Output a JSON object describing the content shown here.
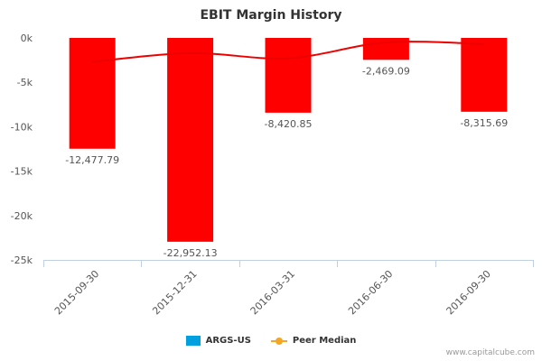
{
  "chart_data": {
    "type": "bar",
    "title": "EBIT Margin History",
    "categories": [
      "2015-09-30",
      "2015-12-31",
      "2016-03-31",
      "2016-06-30",
      "2016-09-30"
    ],
    "series": [
      {
        "name": "ARGS-US",
        "type": "bar",
        "values": [
          -12477.79,
          -22952.13,
          -8420.85,
          -2469.09,
          -8315.69
        ],
        "labels": [
          "-12,477.79",
          "-22,952.13",
          "-8,420.85",
          "-2,469.09",
          "-8,315.69"
        ]
      },
      {
        "name": "Peer Median",
        "type": "line",
        "values": [
          -2700,
          -1700,
          -2300,
          -500,
          -700
        ]
      }
    ],
    "ylim": [
      -25000,
      0
    ],
    "yticks": [
      0,
      -5000,
      -10000,
      -15000,
      -20000,
      -25000
    ],
    "ytick_labels": [
      "0k",
      "-5k",
      "-10k",
      "-15k",
      "-20k",
      "-25k"
    ],
    "xlabel": "",
    "ylabel": "",
    "legend": "bottom-center"
  },
  "colors": {
    "bar": "#ff0000",
    "peer_line": "#ee0000",
    "legend_bar": "#00a0e0",
    "legend_line": "#f5a623"
  },
  "legend": {
    "bar_label": "ARGS-US",
    "line_label": "Peer Median"
  },
  "credit": "www.capitalcube.com"
}
